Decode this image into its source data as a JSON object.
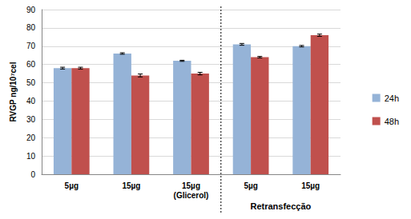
{
  "chart_data": {
    "type": "bar",
    "y_label": "RVGP ng/10⁷cel",
    "categories": [
      "5µg",
      "15µg",
      "15µg\n(Glicerol)",
      "5µg",
      "15µg"
    ],
    "annotation": "Retransfecção",
    "series": [
      {
        "name": "24h",
        "color": "#95b3d7",
        "values": [
          58,
          66,
          62,
          71,
          70
        ],
        "errors": [
          0.5,
          0.4,
          0.3,
          0.5,
          0.4
        ]
      },
      {
        "name": "48h",
        "color": "#c0504d",
        "values": [
          58,
          54,
          55,
          64,
          76
        ],
        "errors": [
          0.5,
          0.8,
          0.7,
          0.4,
          0.6
        ]
      }
    ],
    "ylim": [
      0,
      90
    ],
    "yticks": [
      0,
      10,
      20,
      30,
      40,
      50,
      60,
      70,
      80,
      90
    ],
    "grid": true,
    "legend": "right"
  }
}
